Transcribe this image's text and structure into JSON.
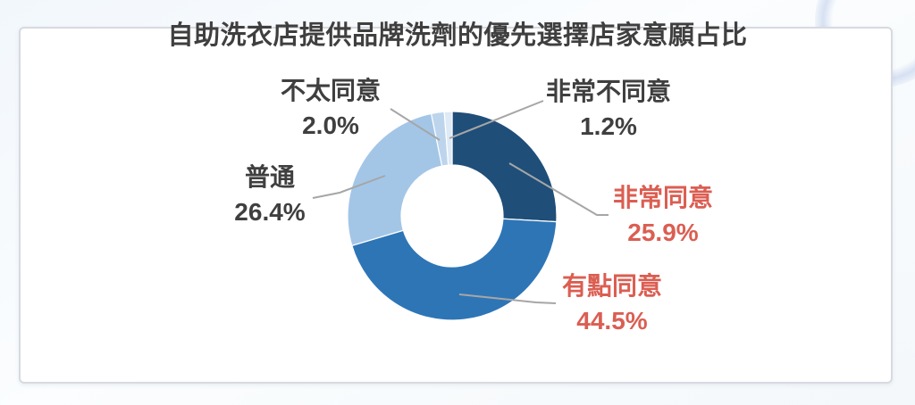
{
  "page": {
    "background_tint": "#f2f7fc",
    "card_color": "#ffffff",
    "card_border_color": "#d7dadf"
  },
  "chart_data": {
    "type": "pie",
    "subtype": "donut",
    "title": "自助洗衣店提供品牌洗劑的優先選擇店家意願占比",
    "title_color": "#3f3f3f",
    "start_angle_deg": 0,
    "direction": "clockwise",
    "hole_ratio": 0.49,
    "legend": "none",
    "leader_line_color": "#a6a6a6",
    "slices": [
      {
        "label": "非常同意",
        "value": 25.9,
        "pct_text": "25.9%",
        "color": "#1f4e79",
        "label_color": "#db5e52"
      },
      {
        "label": "有點同意",
        "value": 44.5,
        "pct_text": "44.5%",
        "color": "#2e75b6",
        "label_color": "#db5e52"
      },
      {
        "label": "普通",
        "value": 26.4,
        "pct_text": "26.4%",
        "color": "#a3c6e7",
        "label_color": "#3f3f3f"
      },
      {
        "label": "不太同意",
        "value": 2.0,
        "pct_text": "2.0%",
        "color": "#bdd5ec",
        "label_color": "#3f3f3f"
      },
      {
        "label": "非常不同意",
        "value": 1.2,
        "pct_text": "1.2%",
        "color": "#deeaf6",
        "label_color": "#3f3f3f"
      }
    ]
  }
}
